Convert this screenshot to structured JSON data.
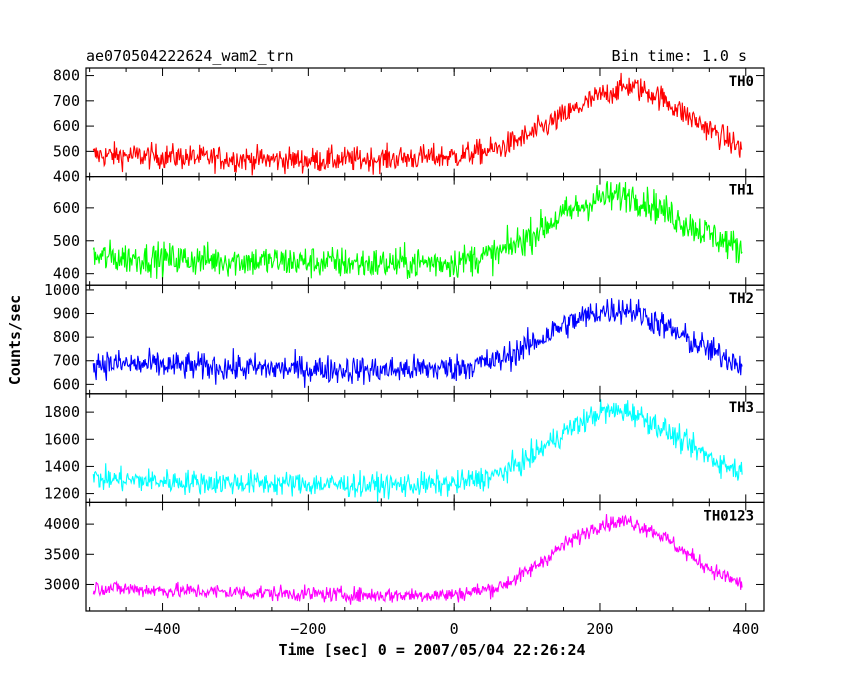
{
  "header": {
    "left": "ae070504222624_wam2_trn",
    "right": "Bin time: 1.0 s"
  },
  "chart_data": {
    "type": "line",
    "title": "ae070504222624_wam2_trn",
    "subtitle": "Bin time: 1.0 s",
    "xlabel": "Time [sec] 0 = 2007/05/04 22:26:24",
    "ylabel": "Counts/sec",
    "xlim": [
      -505,
      425
    ],
    "xticks": [
      -400,
      -200,
      0,
      200,
      400
    ],
    "bin_time_s": 1.0,
    "panels": [
      {
        "name": "TH0",
        "color": "#ff0000",
        "ylim": [
          400,
          830
        ],
        "yticks": [
          400,
          500,
          600,
          700,
          800
        ],
        "noise": 25,
        "profile": [
          [
            -495,
            485
          ],
          [
            -400,
            480
          ],
          [
            -300,
            470
          ],
          [
            -200,
            465
          ],
          [
            -100,
            470
          ],
          [
            0,
            480
          ],
          [
            60,
            510
          ],
          [
            100,
            560
          ],
          [
            150,
            640
          ],
          [
            200,
            720
          ],
          [
            240,
            760
          ],
          [
            280,
            720
          ],
          [
            320,
            640
          ],
          [
            360,
            570
          ],
          [
            395,
            510
          ]
        ]
      },
      {
        "name": "TH1",
        "color": "#00ff00",
        "ylim": [
          365,
          695
        ],
        "yticks": [
          400,
          500,
          600
        ],
        "noise": 25,
        "profile": [
          [
            -495,
            450
          ],
          [
            -400,
            445
          ],
          [
            -300,
            440
          ],
          [
            -200,
            435
          ],
          [
            -100,
            430
          ],
          [
            0,
            435
          ],
          [
            60,
            460
          ],
          [
            100,
            510
          ],
          [
            150,
            580
          ],
          [
            200,
            630
          ],
          [
            240,
            640
          ],
          [
            280,
            600
          ],
          [
            320,
            550
          ],
          [
            360,
            510
          ],
          [
            395,
            470
          ]
        ]
      },
      {
        "name": "TH2",
        "color": "#0000ff",
        "ylim": [
          560,
          1020
        ],
        "yticks": [
          600,
          700,
          800,
          900,
          1000
        ],
        "noise": 30,
        "profile": [
          [
            -495,
            690
          ],
          [
            -400,
            680
          ],
          [
            -300,
            670
          ],
          [
            -200,
            665
          ],
          [
            -100,
            660
          ],
          [
            0,
            670
          ],
          [
            60,
            700
          ],
          [
            100,
            760
          ],
          [
            150,
            850
          ],
          [
            200,
            910
          ],
          [
            240,
            920
          ],
          [
            280,
            860
          ],
          [
            320,
            790
          ],
          [
            360,
            730
          ],
          [
            395,
            690
          ]
        ]
      },
      {
        "name": "TH3",
        "color": "#00ffff",
        "ylim": [
          1135,
          1935
        ],
        "yticks": [
          1200,
          1400,
          1600,
          1800
        ],
        "noise": 45,
        "profile": [
          [
            -495,
            1310
          ],
          [
            -400,
            1290
          ],
          [
            -300,
            1280
          ],
          [
            -200,
            1270
          ],
          [
            -100,
            1260
          ],
          [
            0,
            1270
          ],
          [
            60,
            1340
          ],
          [
            100,
            1450
          ],
          [
            150,
            1650
          ],
          [
            200,
            1800
          ],
          [
            240,
            1810
          ],
          [
            280,
            1700
          ],
          [
            320,
            1560
          ],
          [
            360,
            1440
          ],
          [
            395,
            1360
          ]
        ]
      },
      {
        "name": "TH0123",
        "color": "#ff00ff",
        "ylim": [
          2560,
          4360
        ],
        "yticks": [
          3000,
          3500,
          4000
        ],
        "noise": 65,
        "profile": [
          [
            -495,
            2950
          ],
          [
            -400,
            2900
          ],
          [
            -300,
            2870
          ],
          [
            -200,
            2840
          ],
          [
            -100,
            2820
          ],
          [
            0,
            2830
          ],
          [
            60,
            2950
          ],
          [
            100,
            3200
          ],
          [
            150,
            3650
          ],
          [
            200,
            4000
          ],
          [
            240,
            4050
          ],
          [
            280,
            3850
          ],
          [
            320,
            3500
          ],
          [
            360,
            3200
          ],
          [
            395,
            3000
          ]
        ]
      }
    ]
  }
}
